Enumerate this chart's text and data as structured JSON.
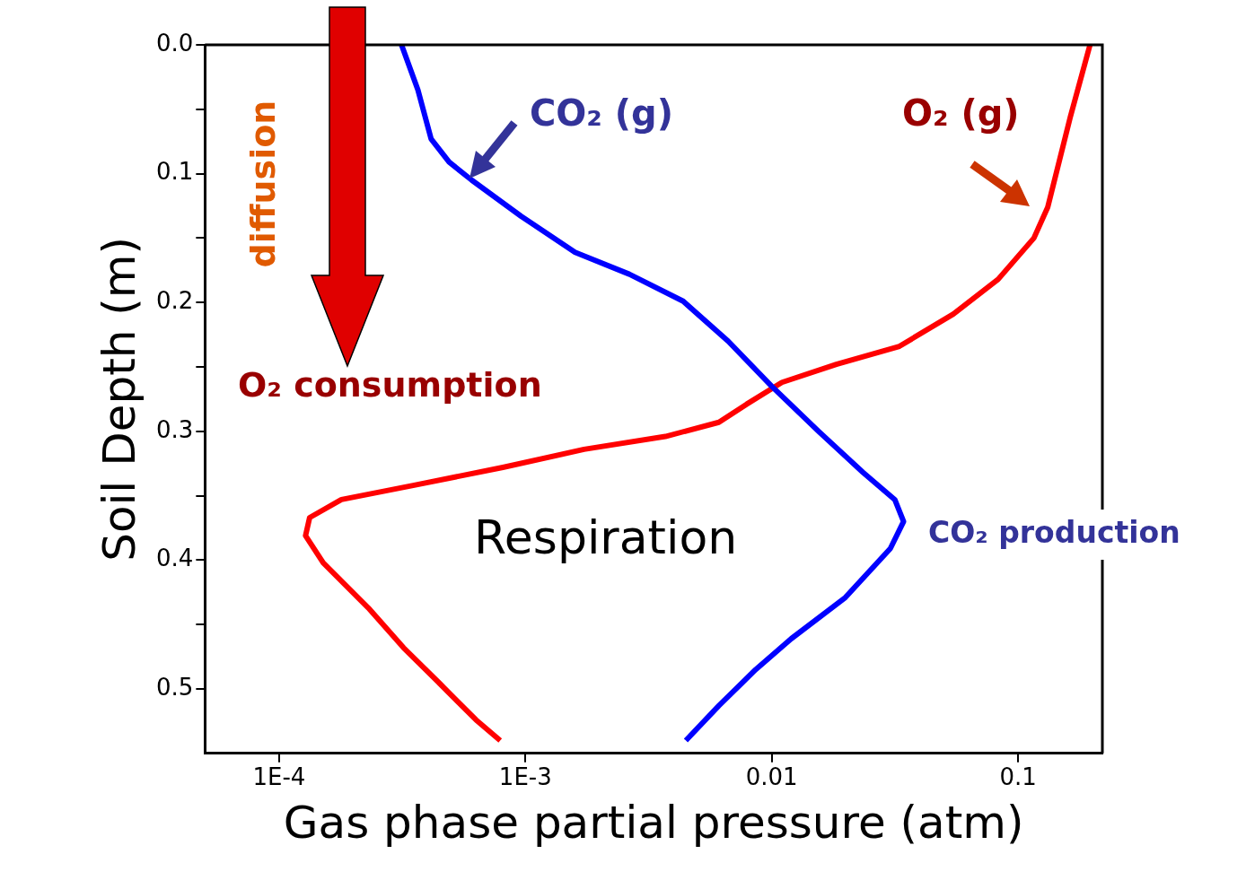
{
  "chart_data": {
    "type": "line",
    "xlabel": "Gas phase partial pressure (atm)",
    "ylabel": "Soil Depth (m)",
    "log": "x",
    "xlim": [
      5e-05,
      0.22
    ],
    "xticks": [
      {
        "value": 0.0001,
        "label": "1E-4"
      },
      {
        "value": 0.001,
        "label": "1E-3"
      },
      0.01,
      0.1
    ],
    "ylim": [
      0.55,
      0
    ],
    "yticks": [
      {
        "value": 0,
        "label": "0.0"
      },
      {
        "value": 0.05,
        "label": null
      },
      0.1,
      {
        "value": 0.15,
        "label": null
      },
      0.2,
      {
        "value": 0.25,
        "label": null
      },
      0.3,
      {
        "value": 0.35,
        "label": null
      },
      0.4,
      {
        "value": 0.45,
        "label": null
      },
      0.5
    ],
    "series": [
      {
        "color": "#0000ff",
        "x": [
          0.000314,
          0.000366,
          0.000414,
          0.00049,
          0.000605,
          0.00096,
          0.00159,
          0.00264,
          0.00437,
          0.00665,
          0.01,
          0.0155,
          0.0235,
          0.0316,
          0.0343,
          0.0303,
          0.0199,
          0.012,
          0.0086,
          0.0061,
          0.00448
        ],
        "values": [
          0,
          0.035,
          0.073,
          0.091,
          0.105,
          0.133,
          0.161,
          0.178,
          0.199,
          0.23,
          0.265,
          0.3,
          0.332,
          0.353,
          0.37,
          0.391,
          0.429,
          0.461,
          0.485,
          0.513,
          0.54
        ]
      },
      {
        "color": "#ff0000",
        "x": [
          0.196,
          0.163,
          0.132,
          0.116,
          0.083,
          0.0546,
          0.033,
          0.0183,
          0.011,
          0.0079,
          0.0061,
          0.0037,
          0.00173,
          0.00081,
          0.00035,
          0.000179,
          0.000133,
          0.000128,
          0.000151,
          0.00023,
          0.00032,
          0.00045,
          0.00063,
          0.00079
        ],
        "values": [
          0,
          0.056,
          0.126,
          0.15,
          0.182,
          0.209,
          0.234,
          0.248,
          0.262,
          0.279,
          0.293,
          0.304,
          0.314,
          0.328,
          0.342,
          0.353,
          0.367,
          0.381,
          0.402,
          0.437,
          0.468,
          0.496,
          0.524,
          0.54
        ]
      }
    ],
    "annotations": [
      "CO₂ (g)",
      "O₂ (g)",
      "diffusion",
      "O₂ consumption",
      "Respiration",
      "CO₂ production"
    ]
  }
}
